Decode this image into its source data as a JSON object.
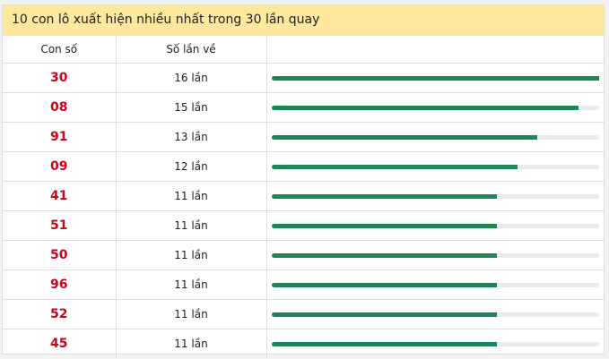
{
  "title": "10 con lô xuất hiện nhiều nhất trong 30 lần quay",
  "columns": [
    "Con số",
    "Số lần về",
    ""
  ],
  "max_count": 16,
  "colors": {
    "number": "#d0021b",
    "bar": "#1a8754",
    "track": "#e9ecef",
    "header_bg": "#fde89e"
  },
  "rows": [
    {
      "number": "30",
      "count_label": "16 lần",
      "count": 16
    },
    {
      "number": "08",
      "count_label": "15 lần",
      "count": 15
    },
    {
      "number": "91",
      "count_label": "13 lần",
      "count": 13
    },
    {
      "number": "09",
      "count_label": "12 lần",
      "count": 12
    },
    {
      "number": "41",
      "count_label": "11 lần",
      "count": 11
    },
    {
      "number": "51",
      "count_label": "11 lần",
      "count": 11
    },
    {
      "number": "50",
      "count_label": "11 lần",
      "count": 11
    },
    {
      "number": "96",
      "count_label": "11 lần",
      "count": 11
    },
    {
      "number": "52",
      "count_label": "11 lần",
      "count": 11
    },
    {
      "number": "45",
      "count_label": "11 lần",
      "count": 11
    }
  ]
}
